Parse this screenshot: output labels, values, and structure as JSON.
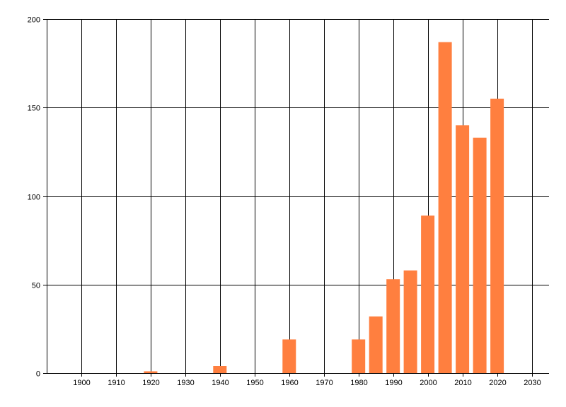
{
  "chart_data": {
    "type": "bar",
    "x": [
      1920,
      1940,
      1960,
      1980,
      1985,
      1990,
      1995,
      2000,
      2005,
      2010,
      2015,
      2020
    ],
    "values": [
      1,
      4,
      19,
      19,
      32,
      53,
      58,
      89,
      187,
      140,
      133,
      155
    ],
    "title": "",
    "xlabel": "",
    "ylabel": "",
    "xlim": [
      1890,
      2035
    ],
    "ylim": [
      0,
      200
    ],
    "x_ticks": [
      1900,
      1910,
      1920,
      1930,
      1940,
      1950,
      1960,
      1970,
      1980,
      1990,
      2000,
      2010,
      2020,
      2030
    ],
    "y_ticks": [
      0,
      50,
      100,
      150,
      200
    ],
    "grid": true,
    "bar_color": "#FF7F3F"
  }
}
